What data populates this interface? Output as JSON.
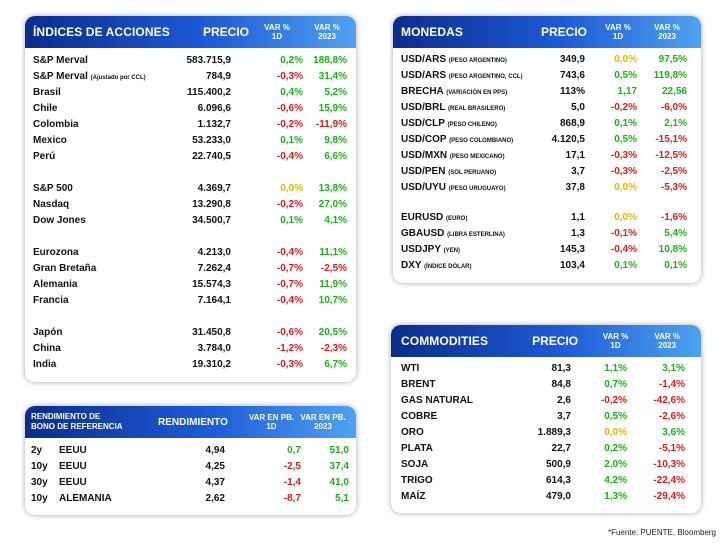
{
  "colors": {
    "positive": "#1bb31b",
    "negative": "#e01b1b",
    "neutral": "#e0b800",
    "header_from": "#0b2d8c",
    "header_to": "#4fa2f0"
  },
  "indices": {
    "title": "ÍNDICES DE ACCIONES",
    "col_price": "PRECIO",
    "col_var1": "VAR %",
    "col_var1_sub": "1D",
    "col_var2": "VAR %",
    "col_var2_sub": "2023",
    "groups": [
      [
        {
          "name": "S&P Merval",
          "sub": "",
          "price": "583.715,9",
          "d1": "0,2%",
          "d1c": "pos",
          "y": "188,8%",
          "yc": "pos"
        },
        {
          "name": "S&P Merval",
          "sub": "(Ajustado por CCL)",
          "price": "784,9",
          "d1": "-0,3%",
          "d1c": "neg",
          "y": "31,4%",
          "yc": "pos"
        },
        {
          "name": "Brasil",
          "sub": "",
          "price": "115.400,2",
          "d1": "0,4%",
          "d1c": "pos",
          "y": "5,2%",
          "yc": "pos"
        },
        {
          "name": "Chile",
          "sub": "",
          "price": "6.096,6",
          "d1": "-0,6%",
          "d1c": "neg",
          "y": "15,9%",
          "yc": "pos"
        },
        {
          "name": "Colombia",
          "sub": "",
          "price": "1.132,7",
          "d1": "-0,2%",
          "d1c": "neg",
          "y": "-11,9%",
          "yc": "neg"
        },
        {
          "name": "Mexico",
          "sub": "",
          "price": "53.233,0",
          "d1": "0,1%",
          "d1c": "pos",
          "y": "9,8%",
          "yc": "pos"
        },
        {
          "name": "Perú",
          "sub": "",
          "price": "22.740,5",
          "d1": "-0,4%",
          "d1c": "neg",
          "y": "6,6%",
          "yc": "pos"
        }
      ],
      [
        {
          "name": "S&P 500",
          "sub": "",
          "price": "4.369,7",
          "d1": "0,0%",
          "d1c": "zero",
          "y": "13,8%",
          "yc": "pos"
        },
        {
          "name": "Nasdaq",
          "sub": "",
          "price": "13.290,8",
          "d1": "-0,2%",
          "d1c": "neg",
          "y": "27,0%",
          "yc": "pos"
        },
        {
          "name": "Dow Jones",
          "sub": "",
          "price": "34.500,7",
          "d1": "0,1%",
          "d1c": "pos",
          "y": "4,1%",
          "yc": "pos"
        }
      ],
      [
        {
          "name": "Eurozona",
          "sub": "",
          "price": "4.213,0",
          "d1": "-0,4%",
          "d1c": "neg",
          "y": "11,1%",
          "yc": "pos"
        },
        {
          "name": "Gran Bretaña",
          "sub": "",
          "price": "7.262,4",
          "d1": "-0,7%",
          "d1c": "neg",
          "y": "-2,5%",
          "yc": "neg"
        },
        {
          "name": "Alemania",
          "sub": "",
          "price": "15.574,3",
          "d1": "-0,7%",
          "d1c": "neg",
          "y": "11,9%",
          "yc": "pos"
        },
        {
          "name": "Francia",
          "sub": "",
          "price": "7.164,1",
          "d1": "-0,4%",
          "d1c": "neg",
          "y": "10,7%",
          "yc": "pos"
        }
      ],
      [
        {
          "name": "Japón",
          "sub": "",
          "price": "31.450,8",
          "d1": "-0,6%",
          "d1c": "neg",
          "y": "20,5%",
          "yc": "pos"
        },
        {
          "name": "China",
          "sub": "",
          "price": "3.784,0",
          "d1": "-1,2%",
          "d1c": "neg",
          "y": "-2,3%",
          "yc": "neg"
        },
        {
          "name": "India",
          "sub": "",
          "price": "19.310,2",
          "d1": "-0,3%",
          "d1c": "neg",
          "y": "6,7%",
          "yc": "pos"
        }
      ]
    ]
  },
  "bonds": {
    "title_line1": "RENDIMIENTO DE",
    "title_line2": "BONO DE REFERENCIA",
    "col_yield": "RENDIMIENTO",
    "col_var1": "VAR EN PB.",
    "col_var1_sub": "1D",
    "col_var2": "VAR EN PB.",
    "col_var2_sub": "2023",
    "rows": [
      {
        "term": "2y",
        "country": "EEUU",
        "yield": "4,94",
        "d1": "0,7",
        "d1c": "pos",
        "y": "51,0",
        "yc": "pos"
      },
      {
        "term": "10y",
        "country": "EEUU",
        "yield": "4,25",
        "d1": "-2,5",
        "d1c": "neg",
        "y": "37,4",
        "yc": "pos"
      },
      {
        "term": "30y",
        "country": "EEUU",
        "yield": "4,37",
        "d1": "-1,4",
        "d1c": "neg",
        "y": "41,0",
        "yc": "pos"
      },
      {
        "term": "10y",
        "country": "ALEMANIA",
        "yield": "2,62",
        "d1": "-8,7",
        "d1c": "neg",
        "y": "5,1",
        "yc": "pos"
      }
    ]
  },
  "currencies": {
    "title": "MONEDAS",
    "col_price": "PRECIO",
    "col_var1": "VAR %",
    "col_var1_sub": "1D",
    "col_var2": "VAR %",
    "col_var2_sub": "2023",
    "groups": [
      [
        {
          "name": "USD/ARS",
          "sub": "(PESO ARGENTINO)",
          "price": "349,9",
          "d1": "0,0%",
          "d1c": "zero",
          "y": "97,5%",
          "yc": "pos"
        },
        {
          "name": "USD/ARS",
          "sub": "(PESO ARGENTINO, CCL)",
          "price": "743,6",
          "d1": "0,5%",
          "d1c": "pos",
          "y": "119,8%",
          "yc": "pos"
        },
        {
          "name": "BRECHA",
          "sub": "(VARIACIÓN EN PPS)",
          "price": "113%",
          "d1": "1,17",
          "d1c": "pos",
          "y": "22,56",
          "yc": "pos"
        },
        {
          "name": "USD/BRL",
          "sub": "(REAL BRASILERO)",
          "price": "5,0",
          "d1": "-0,2%",
          "d1c": "neg",
          "y": "-6,0%",
          "yc": "neg"
        },
        {
          "name": "USD/CLP",
          "sub": "(PESO CHILENO)",
          "price": "868,9",
          "d1": "0,1%",
          "d1c": "pos",
          "y": "2,1%",
          "yc": "pos"
        },
        {
          "name": "USD/COP",
          "sub": "(PESO COLOMBIANO)",
          "price": "4.120,5",
          "d1": "0,5%",
          "d1c": "pos",
          "y": "-15,1%",
          "yc": "neg"
        },
        {
          "name": "USD/MXN",
          "sub": "(PESO MEXICANO)",
          "price": "17,1",
          "d1": "-0,3%",
          "d1c": "neg",
          "y": "-12,5%",
          "yc": "neg"
        },
        {
          "name": "USD/PEN",
          "sub": "(SOL PERUANO)",
          "price": "3,7",
          "d1": "-0,3%",
          "d1c": "neg",
          "y": "-2,5%",
          "yc": "neg"
        },
        {
          "name": "USD/UYU",
          "sub": "(PESO URUGUAYO)",
          "price": "37,8",
          "d1": "0,0%",
          "d1c": "zero",
          "y": "-5,3%",
          "yc": "neg"
        }
      ],
      [
        {
          "name": "EURUSD",
          "sub": "(EURO)",
          "price": "1,1",
          "d1": "0,0%",
          "d1c": "zero",
          "y": "-1,6%",
          "yc": "neg"
        },
        {
          "name": "GBAUSD",
          "sub": "(LIBRA ESTERLINA)",
          "price": "1,3",
          "d1": "-0,1%",
          "d1c": "neg",
          "y": "5,4%",
          "yc": "pos"
        },
        {
          "name": "USDJPY",
          "sub": "(YEN)",
          "price": "145,3",
          "d1": "-0,4%",
          "d1c": "neg",
          "y": "10,8%",
          "yc": "pos"
        },
        {
          "name": "DXY",
          "sub": "(ÍNDICE DÓLAR)",
          "price": "103,4",
          "d1": "0,1%",
          "d1c": "pos",
          "y": "0,1%",
          "yc": "pos"
        }
      ]
    ]
  },
  "commodities": {
    "title": "COMMODITIES",
    "col_price": "PRECIO",
    "col_var1": "VAR %",
    "col_var1_sub": "1D",
    "col_var2": "VAR %",
    "col_var2_sub": "2023",
    "rows": [
      {
        "name": "WTI",
        "price": "81,3",
        "d1": "1,1%",
        "d1c": "pos",
        "y": "3,1%",
        "yc": "pos"
      },
      {
        "name": "BRENT",
        "price": "84,8",
        "d1": "0,7%",
        "d1c": "pos",
        "y": "-1,4%",
        "yc": "neg"
      },
      {
        "name": "GAS NATURAL",
        "price": "2,6",
        "d1": "-0,2%",
        "d1c": "neg",
        "y": "-42,6%",
        "yc": "neg"
      },
      {
        "name": "COBRE",
        "price": "3,7",
        "d1": "0,5%",
        "d1c": "pos",
        "y": "-2,6%",
        "yc": "neg"
      },
      {
        "name": "ORO",
        "price": "1.889,3",
        "d1": "0,0%",
        "d1c": "zero",
        "y": "3,6%",
        "yc": "pos"
      },
      {
        "name": "PLATA",
        "price": "22,7",
        "d1": "0,2%",
        "d1c": "pos",
        "y": "-5,1%",
        "yc": "neg"
      },
      {
        "name": "SOJA",
        "price": "500,9",
        "d1": "2,0%",
        "d1c": "pos",
        "y": "-10,3%",
        "yc": "neg"
      },
      {
        "name": "TRIGO",
        "price": "614,3",
        "d1": "4,2%",
        "d1c": "pos",
        "y": "-22,4%",
        "yc": "neg"
      },
      {
        "name": "MAÍZ",
        "price": "479,0",
        "d1": "1,3%",
        "d1c": "pos",
        "y": "-29,4%",
        "yc": "neg"
      }
    ]
  },
  "footnote": "*Fuente: PUENTE, Bloomberg"
}
